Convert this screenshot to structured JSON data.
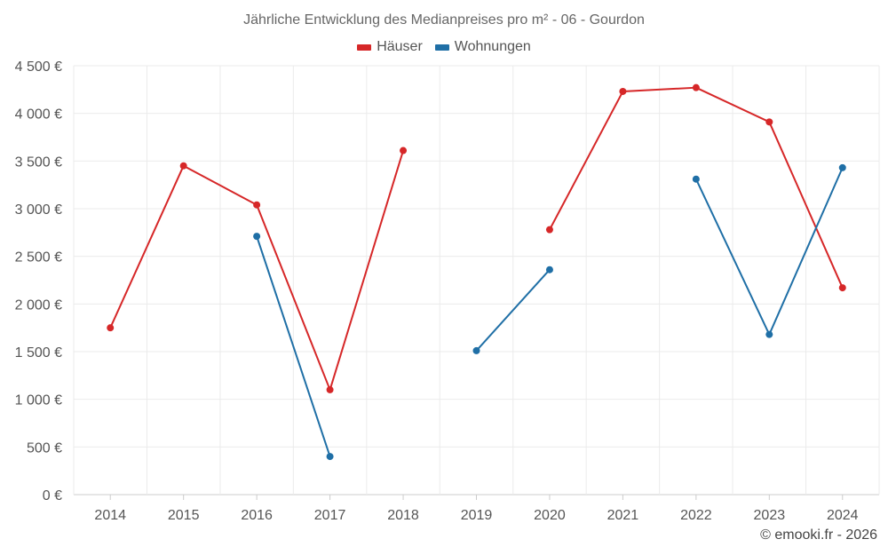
{
  "chart_data": {
    "type": "line",
    "title": "Jährliche Entwicklung des Medianpreises pro m² - 06 - Gourdon",
    "x": [
      "2014",
      "2015",
      "2016",
      "2017",
      "2018",
      "2019",
      "2020",
      "2021",
      "2022",
      "2023",
      "2024"
    ],
    "y_ticks": [
      "0 €",
      "500 €",
      "1 000 €",
      "1 500 €",
      "2 000 €",
      "2 500 €",
      "3 000 €",
      "3 500 €",
      "4 000 €",
      "4 500 €"
    ],
    "ylim": [
      0,
      4500
    ],
    "grid": true,
    "legend_position": "top-center",
    "series": [
      {
        "name": "Häuser",
        "color": "#d62728",
        "values": [
          1750,
          3450,
          3040,
          1100,
          3610,
          null,
          2780,
          4230,
          4270,
          3910,
          2170
        ]
      },
      {
        "name": "Wohnungen",
        "color": "#1f6fa6",
        "values": [
          null,
          null,
          2710,
          400,
          null,
          1510,
          2360,
          null,
          3310,
          1680,
          3430
        ]
      }
    ]
  },
  "credit": "© emooki.fr - 2026"
}
